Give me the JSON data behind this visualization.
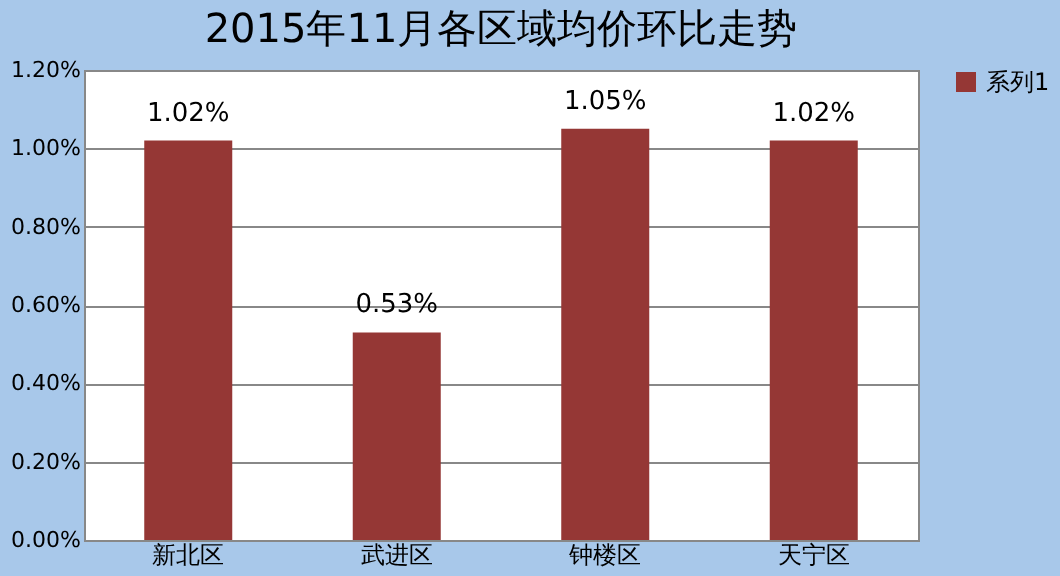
{
  "chart_data": {
    "type": "bar",
    "title": "2015年11月各区域均价环比走势",
    "categories": [
      "新北区",
      "武进区",
      "钟楼区",
      "天宁区"
    ],
    "series": [
      {
        "name": "系列1",
        "color": "#953735",
        "values": [
          1.02,
          0.53,
          1.05,
          1.02
        ]
      }
    ],
    "value_labels": [
      "1.02%",
      "0.53%",
      "1.05%",
      "1.02%"
    ],
    "ylim": [
      0,
      1.2
    ],
    "yticks": [
      {
        "value": 0,
        "label": "0.00%"
      },
      {
        "value": 0.2,
        "label": "0.20%"
      },
      {
        "value": 0.4,
        "label": "0.40%"
      },
      {
        "value": 0.6,
        "label": "0.60%"
      },
      {
        "value": 0.8,
        "label": "0.80%"
      },
      {
        "value": 1.0,
        "label": "1.00%"
      },
      {
        "value": 1.2,
        "label": "1.20%"
      }
    ],
    "grid": "y",
    "legend": "right"
  }
}
